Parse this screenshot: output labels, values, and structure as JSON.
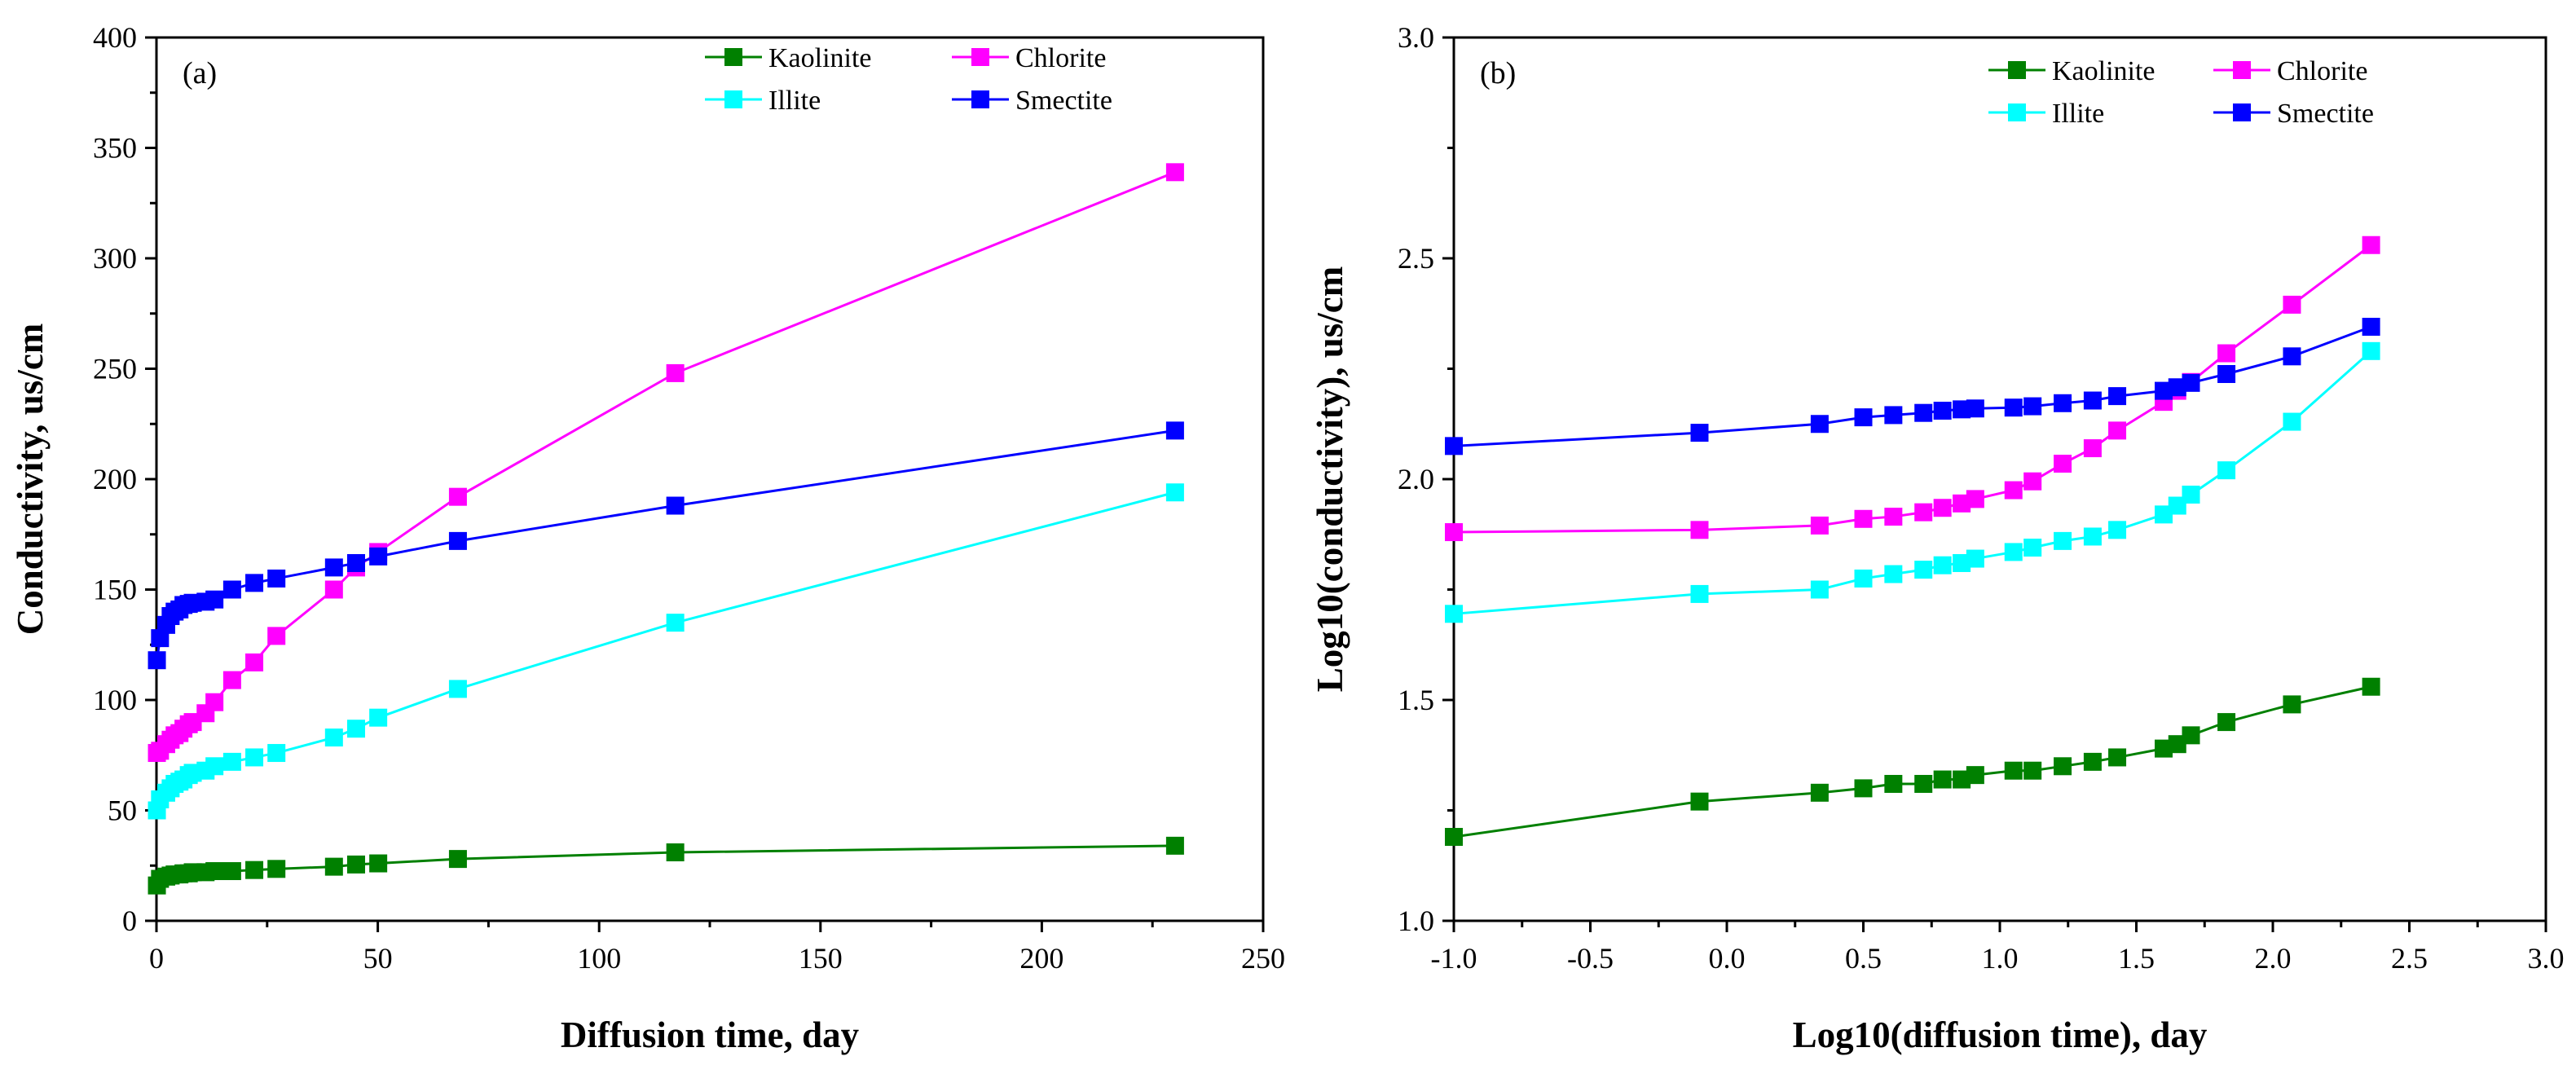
{
  "chart_data": [
    {
      "type": "line",
      "panel_label": "(a)",
      "xlabel": "Diffusion time, day",
      "ylabel": "Conductivity, us/cm",
      "xlim": [
        0,
        250
      ],
      "ylim": [
        0,
        400
      ],
      "xticks": [
        0,
        50,
        100,
        150,
        200,
        250
      ],
      "yticks": [
        0,
        50,
        100,
        150,
        200,
        250,
        300,
        350,
        400
      ],
      "grid": false,
      "legend_position": "top-right",
      "legend_layout": [
        [
          "Kaolinite",
          "Chlorite"
        ],
        [
          "Illite",
          "Smectite"
        ]
      ],
      "x": [
        0.1,
        0.8,
        2.2,
        3.2,
        4.1,
        5.2,
        6.1,
        7.3,
        8.2,
        11.1,
        13.1,
        17.1,
        22.1,
        27.1,
        40.1,
        45.1,
        50.1,
        68.1,
        117.2,
        230.1
      ],
      "series": [
        {
          "name": "Kaolinite",
          "color": "#008000",
          "values": [
            16,
            19,
            20,
            20.5,
            21,
            21,
            21.5,
            21.5,
            22,
            22,
            22.5,
            22.5,
            23,
            23.5,
            24.5,
            25.5,
            26,
            28,
            31,
            34
          ]
        },
        {
          "name": "Chlorite",
          "color": "#ff00ff",
          "values": [
            76,
            77,
            80,
            82,
            84,
            85,
            87,
            89,
            90,
            94,
            99,
            109,
            117,
            129,
            150,
            160,
            167,
            192,
            248,
            339
          ]
        },
        {
          "name": "Illite",
          "color": "#00ffff",
          "values": [
            50,
            55,
            58,
            60,
            62,
            63,
            64,
            66,
            67,
            68,
            70,
            72,
            74,
            76,
            83,
            87,
            92,
            105,
            135,
            194
          ]
        },
        {
          "name": "Smectite",
          "color": "#0000ff",
          "values": [
            118,
            128,
            134,
            138,
            140,
            141,
            143,
            143.5,
            144,
            144.5,
            145.5,
            150,
            153,
            155,
            160,
            162,
            165,
            172,
            188,
            222
          ]
        }
      ]
    },
    {
      "type": "line",
      "panel_label": "(b)",
      "xlabel": "Log10(diffusion time), day",
      "ylabel": "Log10(conductivity), us/cm",
      "xlim": [
        -1.0,
        3.0
      ],
      "ylim": [
        1.0,
        3.0
      ],
      "xticks": [
        "-1.0",
        "-0.5",
        "0.0",
        "0.5",
        "1.0",
        "1.5",
        "2.0",
        "2.5",
        "3.0"
      ],
      "yticks": [
        "1.0",
        "1.5",
        "2.0",
        "2.5",
        "3.0"
      ],
      "grid": false,
      "legend_position": "top-right",
      "legend_layout": [
        [
          "Kaolinite",
          "Chlorite"
        ],
        [
          "Illite",
          "Smectite"
        ]
      ],
      "x": [
        -1.0,
        -0.1,
        0.34,
        0.5,
        0.61,
        0.72,
        0.79,
        0.86,
        0.91,
        1.05,
        1.12,
        1.23,
        1.34,
        1.43,
        1.6,
        1.65,
        1.7,
        1.83,
        2.07,
        2.36
      ],
      "series": [
        {
          "name": "Kaolinite",
          "color": "#008000",
          "values": [
            1.19,
            1.27,
            1.29,
            1.3,
            1.31,
            1.31,
            1.32,
            1.32,
            1.33,
            1.34,
            1.34,
            1.35,
            1.36,
            1.37,
            1.39,
            1.4,
            1.42,
            1.45,
            1.49,
            1.53
          ]
        },
        {
          "name": "Chlorite",
          "color": "#ff00ff",
          "values": [
            1.88,
            1.885,
            1.895,
            1.91,
            1.915,
            1.925,
            1.935,
            1.945,
            1.955,
            1.975,
            1.995,
            2.035,
            2.07,
            2.11,
            2.175,
            2.2,
            2.22,
            2.285,
            2.395,
            2.53
          ]
        },
        {
          "name": "Illite",
          "color": "#00ffff",
          "values": [
            1.695,
            1.74,
            1.75,
            1.775,
            1.785,
            1.795,
            1.805,
            1.81,
            1.82,
            1.835,
            1.845,
            1.86,
            1.87,
            1.885,
            1.92,
            1.94,
            1.965,
            2.02,
            2.13,
            2.29
          ]
        },
        {
          "name": "Smectite",
          "color": "#0000ff",
          "values": [
            2.075,
            2.105,
            2.125,
            2.14,
            2.145,
            2.15,
            2.155,
            2.158,
            2.16,
            2.162,
            2.165,
            2.172,
            2.178,
            2.188,
            2.2,
            2.208,
            2.218,
            2.238,
            2.278,
            2.345
          ]
        }
      ]
    }
  ]
}
